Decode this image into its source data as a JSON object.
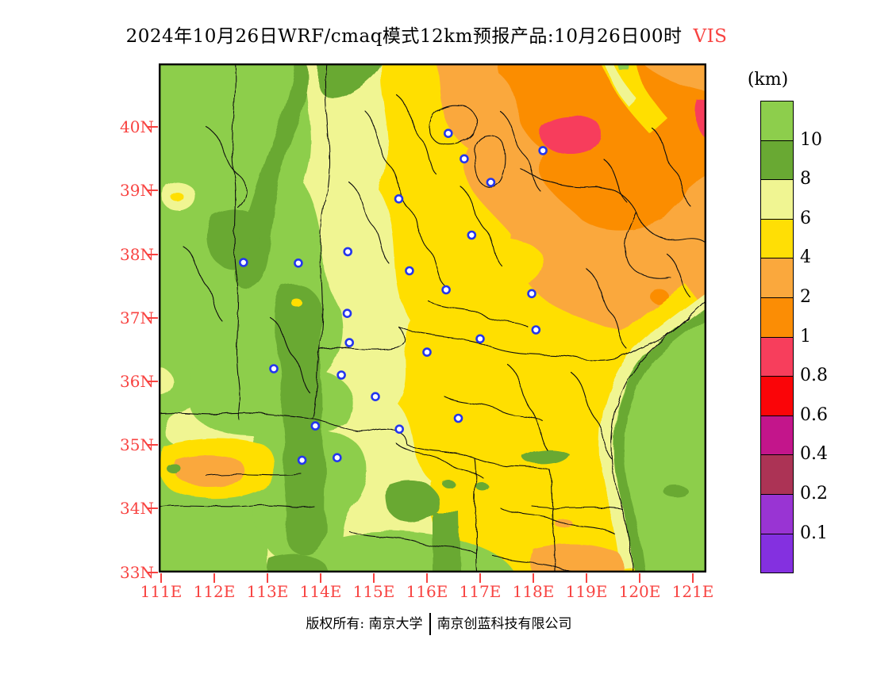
{
  "title": {
    "text": "2024年10月26日WRF/cmaq模式12km预报产品:10月26日00时",
    "highlight": "VIS"
  },
  "axes": {
    "lat_labels": [
      "40N",
      "39N",
      "38N",
      "37N",
      "36N",
      "35N",
      "34N",
      "33N"
    ],
    "lon_labels": [
      "111E",
      "112E",
      "113E",
      "114E",
      "115E",
      "116E",
      "117E",
      "118E",
      "119E",
      "120E",
      "121E"
    ]
  },
  "legend": {
    "unit": "(km)",
    "labels": [
      "10",
      "8",
      "6",
      "4",
      "2",
      "1",
      "0.8",
      "0.6",
      "0.4",
      "0.2",
      "0.1"
    ],
    "colors": [
      "green_light",
      "green_dark",
      "yellow_pale",
      "yellow",
      "orange",
      "orange_dark",
      "pink",
      "red",
      "magenta",
      "rose_dark",
      "purple",
      "violet"
    ]
  },
  "footer": {
    "copyright_left": "版权所有: 南京大学",
    "copyright_right": "南京创蓝科技有限公司"
  },
  "palette": {
    "green_light": "#8DCE4C",
    "green_dark": "#69A933",
    "yellow_pale": "#F0F592",
    "yellow": "#FFDF05",
    "orange": "#FAA83D",
    "orange_dark": "#FB8D05",
    "pink": "#F73E5C",
    "red": "#FA0508",
    "magenta": "#C3158B",
    "rose_dark": "#AC3355",
    "purple": "#9934D3",
    "violet": "#8430E0",
    "axis_red": "#F84341",
    "marker_blue": "#2335EE",
    "boundary": "#111111"
  },
  "chart_data": {
    "type": "heatmap",
    "variable": "VIS",
    "unit": "km",
    "lon_range": [
      111.0,
      121.25
    ],
    "lat_range": [
      33.0,
      41.0
    ],
    "lon_ticks": [
      111,
      112,
      113,
      114,
      115,
      116,
      117,
      118,
      119,
      120,
      121
    ],
    "lat_ticks": [
      40,
      39,
      38,
      37,
      36,
      35,
      34,
      33
    ],
    "levels_km": [
      0.1,
      0.2,
      0.4,
      0.6,
      0.8,
      1,
      2,
      4,
      6,
      8,
      10
    ],
    "legend_position": "right",
    "regions_summary": [
      {
        "area": "west plateau (111-113.5E, full height)",
        "vis_km": ">10 with 8-10 bands"
      },
      {
        "area": "central band (114-115E)",
        "vis_km": "6-8"
      },
      {
        "area": "central plain (115-117E, 33-38N)",
        "vis_km": "4-6"
      },
      {
        "area": "northeast (116-121E, 37.5-41N)",
        "vis_km": "2-4 outer, 1-2 core"
      },
      {
        "area": "Beijing-Tangshan pocket (~116.8-118.3E, 39.5-40.2N)",
        "vis_km": "0.8-1"
      },
      {
        "area": "far east edge (~121.2E, 39.7-40.3N)",
        "vis_km": "0.8-1"
      },
      {
        "area": "southeast coast / Yellow Sea (SE corner)",
        "vis_km": ">10 with 8-10 fringe"
      },
      {
        "area": "southwest streak (~111.3-112.5E, ~34.5N)",
        "vis_km": "2-4"
      },
      {
        "area": "south-bottom streak (~118-119.7E, ~33.2N)",
        "vis_km": "2-4"
      }
    ],
    "city_markers_lon_lat": [
      [
        116.4,
        39.9
      ],
      [
        116.7,
        39.5
      ],
      [
        118.18,
        39.63
      ],
      [
        117.2,
        39.13
      ],
      [
        115.47,
        38.87
      ],
      [
        116.84,
        38.3
      ],
      [
        114.51,
        38.04
      ],
      [
        112.55,
        37.87
      ],
      [
        113.58,
        37.86
      ],
      [
        115.67,
        37.74
      ],
      [
        116.36,
        37.44
      ],
      [
        117.97,
        37.38
      ],
      [
        114.5,
        37.07
      ],
      [
        118.05,
        36.81
      ],
      [
        117.0,
        36.67
      ],
      [
        114.54,
        36.61
      ],
      [
        116.0,
        36.46
      ],
      [
        113.12,
        36.2
      ],
      [
        114.39,
        36.1
      ],
      [
        115.03,
        35.76
      ],
      [
        116.59,
        35.42
      ],
      [
        115.48,
        35.25
      ],
      [
        113.9,
        35.3
      ],
      [
        114.31,
        34.8
      ],
      [
        113.65,
        34.76
      ]
    ]
  }
}
